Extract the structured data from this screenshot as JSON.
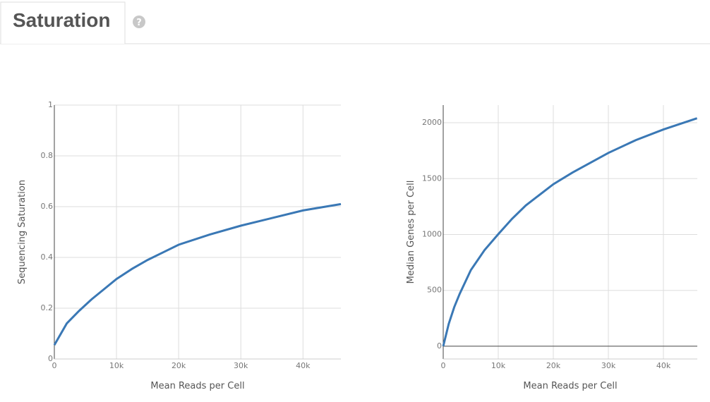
{
  "header": {
    "title": "Saturation",
    "help_icon": "?"
  },
  "chart_data": [
    {
      "type": "line",
      "x_label": "Mean Reads per Cell",
      "y_label": "Sequencing Saturation",
      "color": "#3a78b5",
      "grid": true,
      "x": [
        0,
        2000,
        4000,
        6000,
        8000,
        10000,
        12500,
        15000,
        17500,
        20000,
        25000,
        30000,
        35000,
        40000,
        46100
      ],
      "values": [
        0.055,
        0.14,
        0.19,
        0.235,
        0.275,
        0.315,
        0.355,
        0.39,
        0.42,
        0.45,
        0.49,
        0.525,
        0.555,
        0.585,
        0.61
      ],
      "xlim": [
        0,
        46100
      ],
      "xticks": [
        0,
        {
          "value": 10000,
          "label": "10k"
        },
        {
          "value": 20000,
          "label": "20k"
        },
        {
          "value": 30000,
          "label": "30k"
        },
        {
          "value": 40000,
          "label": "40k"
        }
      ],
      "ylim": [
        0,
        1
      ],
      "yticks": [
        0,
        0.2,
        0.4,
        0.6,
        0.8,
        1
      ]
    },
    {
      "type": "line",
      "x_label": "Mean Reads per Cell",
      "y_label": "Median Genes per Cell",
      "color": "#3a78b5",
      "grid": true,
      "x": [
        0,
        1000,
        2000,
        3000,
        5000,
        7500,
        10000,
        12500,
        15000,
        20000,
        23500,
        30000,
        35000,
        40000,
        46100
      ],
      "values": [
        0,
        200,
        350,
        470,
        680,
        860,
        1003,
        1140,
        1260,
        1450,
        1555,
        1730,
        1845,
        1940,
        2040
      ],
      "xlim": [
        0,
        46150
      ],
      "xticks": [
        0,
        {
          "value": 10000,
          "label": "10k"
        },
        {
          "value": 20000,
          "label": "20k"
        },
        {
          "value": 30000,
          "label": "30k"
        },
        {
          "value": 40000,
          "label": "40k"
        }
      ],
      "ylim": [
        -114,
        2158
      ],
      "yticks": [
        0,
        500,
        1000,
        1500,
        2000
      ]
    }
  ]
}
